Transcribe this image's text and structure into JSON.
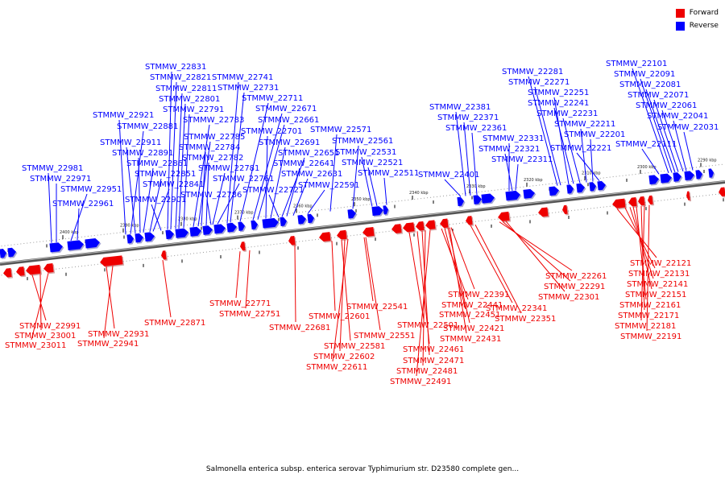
{
  "colors": {
    "forward": "#ee0000",
    "reverse": "#0000ff",
    "backbone": "#888888",
    "backbone_edge": "#555555",
    "tick_mark": "#000000"
  },
  "legend": [
    {
      "key": "forward",
      "label": "Forward"
    },
    {
      "key": "reverse",
      "label": "Reverse"
    }
  ],
  "caption": "Salmonella enterica subsp. enterica serovar Typhimurium str. D23580 complete gen...",
  "tick_labels": [
    "2290 kbp",
    "2300 kbp",
    "2310 kbp",
    "2320 kbp",
    "2330 kbp",
    "2340 kbp",
    "2350 kbp",
    "2360 kbp",
    "2370 kbp",
    "2380 kbp",
    "2390 kbp",
    "2400 kbp"
  ],
  "reverse_labels": [
    "STMMW_22101",
    "STMMW_22091",
    "STMMW_22081",
    "STMMW_22071",
    "STMMW_22061",
    "STMMW_22041",
    "STMMW_22031",
    "STMMW_22111",
    "STMMW_22281",
    "STMMW_22271",
    "STMMW_22251",
    "STMMW_22241",
    "STMMW_22231",
    "STMMW_22211",
    "STMMW_22201",
    "STMMW_22221",
    "STMMW_22381",
    "STMMW_22371",
    "STMMW_22361",
    "STMMW_22331",
    "STMMW_22321",
    "STMMW_22311",
    "STMMW_22401",
    "STMMW_22571",
    "STMMW_22561",
    "STMMW_22531",
    "STMMW_22521",
    "STMMW_22511",
    "STMMW_22591",
    "STMMW_22831",
    "STMMW_22821",
    "STMMW_22811",
    "STMMW_22801",
    "STMMW_22791",
    "STMMW_22783",
    "STMMW_22785",
    "STMMW_22784",
    "STMMW_22782",
    "STMMW_22781",
    "STMMW_22761",
    "STMMW_22786",
    "STMMW_22741",
    "STMMW_22731",
    "STMMW_22711",
    "STMMW_22671",
    "STMMW_22661",
    "STMMW_22701",
    "STMMW_22691",
    "STMMW_22651",
    "STMMW_22641",
    "STMMW_22631",
    "STMMW_22721",
    "STMMW_22921",
    "STMMW_22881",
    "STMMW_22911",
    "STMMW_22891",
    "STMMW_22861",
    "STMMW_22851",
    "STMMW_22841",
    "STMMW_22901",
    "STMMW_22981",
    "STMMW_22971",
    "STMMW_22951",
    "STMMW_22961"
  ],
  "forward_labels": [
    "STMMW_22121",
    "STMMW_22131",
    "STMMW_22141",
    "STMMW_22151",
    "STMMW_22161",
    "STMMW_22171",
    "STMMW_22181",
    "STMMW_22191",
    "STMMW_22261",
    "STMMW_22291",
    "STMMW_22301",
    "STMMW_22391",
    "STMMW_22341",
    "STMMW_22351",
    "STMMW_22441",
    "STMMW_22451",
    "STMMW_22421",
    "STMMW_22431",
    "STMMW_22541",
    "STMMW_22501",
    "STMMW_22461",
    "STMMW_22471",
    "STMMW_22481",
    "STMMW_22491",
    "STMMW_22601",
    "STMMW_22551",
    "STMMW_22681",
    "STMMW_22581",
    "STMMW_22602",
    "STMMW_22611",
    "STMMW_22771",
    "STMMW_22751",
    "STMMW_22871",
    "STMMW_22991",
    "STMMW_23001",
    "STMMW_23011",
    "STMMW_22931",
    "STMMW_22941"
  ]
}
